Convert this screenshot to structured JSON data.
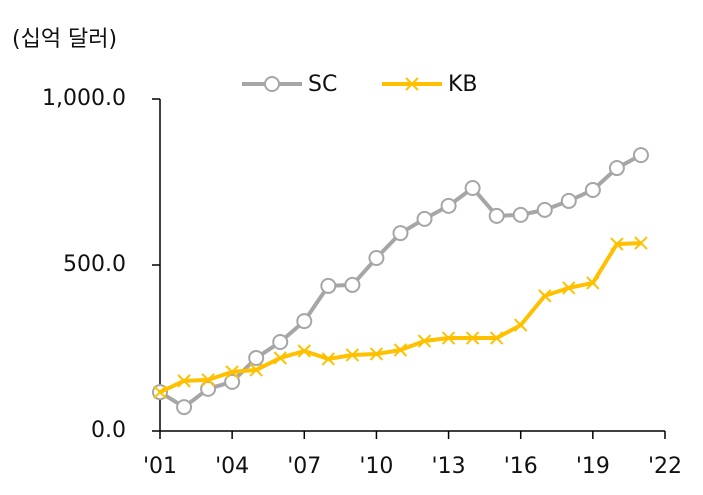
{
  "chart_data": {
    "type": "line",
    "y_label": "(십억 달러)",
    "x": [
      2001,
      2002,
      2003,
      2004,
      2005,
      2006,
      2007,
      2008,
      2009,
      2010,
      2011,
      2012,
      2013,
      2014,
      2015,
      2016,
      2017,
      2018,
      2019,
      2020,
      2021
    ],
    "series": [
      {
        "name": "SC",
        "color": "#a6a6a6",
        "marker": "circle",
        "values": [
          117,
          72,
          127,
          148,
          220,
          268,
          331,
          437,
          440,
          521,
          596,
          639,
          678,
          732,
          648,
          651,
          666,
          693,
          726,
          792,
          831
        ]
      },
      {
        "name": "KB",
        "color": "#ffc000",
        "marker": "x",
        "values": [
          117,
          151,
          154,
          178,
          184,
          220,
          241,
          217,
          229,
          232,
          244,
          271,
          280,
          280,
          280,
          319,
          407,
          431,
          446,
          563,
          566
        ]
      }
    ],
    "xlim": [
      2001,
      2022
    ],
    "xticks": [
      {
        "value": 2001,
        "label": "'01"
      },
      {
        "value": 2004,
        "label": "'04"
      },
      {
        "value": 2007,
        "label": "'07"
      },
      {
        "value": 2010,
        "label": "'10"
      },
      {
        "value": 2013,
        "label": "'13"
      },
      {
        "value": 2016,
        "label": "'16"
      },
      {
        "value": 2019,
        "label": "'19"
      },
      {
        "value": 2022,
        "label": "'22"
      }
    ],
    "ylim": [
      0,
      1000
    ],
    "yticks": [
      {
        "value": 0,
        "label": "0.0"
      },
      {
        "value": 500,
        "label": "500.0"
      },
      {
        "value": 1000,
        "label": "1,000.0"
      }
    ],
    "legend": "top"
  }
}
